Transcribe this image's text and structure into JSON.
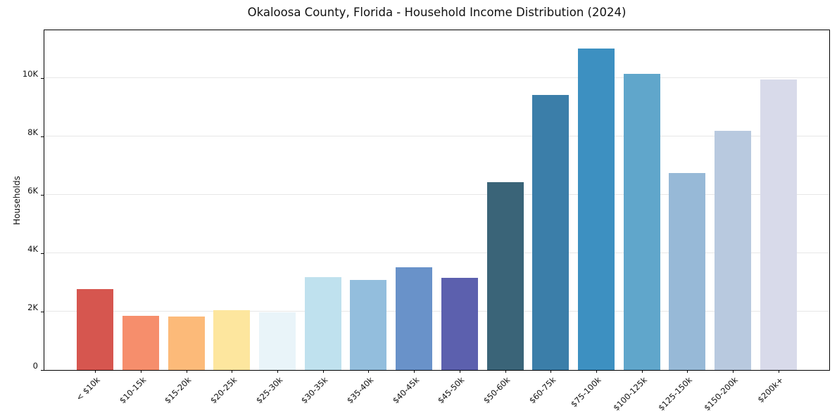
{
  "chart_data": {
    "type": "bar",
    "title": "Okaloosa County, Florida - Household Income Distribution (2024)",
    "xlabel": "",
    "ylabel": "Households",
    "categories": [
      "< $10k",
      "$10-15k",
      "$15-20k",
      "$20-25k",
      "$25-30k",
      "$30-35k",
      "$35-40k",
      "$40-45k",
      "$45-50k",
      "$50-60k",
      "$60-75k",
      "$75-100k",
      "$100-125k",
      "$125-150k",
      "$150-200k",
      "$200k+"
    ],
    "values": [
      2770,
      1860,
      1830,
      2060,
      1990,
      3180,
      3080,
      3510,
      3160,
      6450,
      9440,
      11020,
      10160,
      6760,
      8190,
      9950
    ],
    "bar_colors": [
      "#d6564f",
      "#f68e6c",
      "#fcba79",
      "#fde69e",
      "#e9f4f9",
      "#bfe1ee",
      "#93bedd",
      "#6992c9",
      "#5c60ae",
      "#3a6478",
      "#3b7ea9",
      "#3d90c1",
      "#60a6cb",
      "#97b9d7",
      "#b8c9df",
      "#d8daea"
    ],
    "ylim": [
      0,
      11650
    ],
    "yticks": {
      "values": [
        0,
        2000,
        4000,
        6000,
        8000,
        10000
      ],
      "labels": [
        "0",
        "2K",
        "4K",
        "6K",
        "8K",
        "10K"
      ]
    },
    "grid": "horizontal",
    "gridline_color": "#e7e7e7",
    "background_color": "#ffffff",
    "axis_color": "#000000",
    "legend": "none"
  }
}
